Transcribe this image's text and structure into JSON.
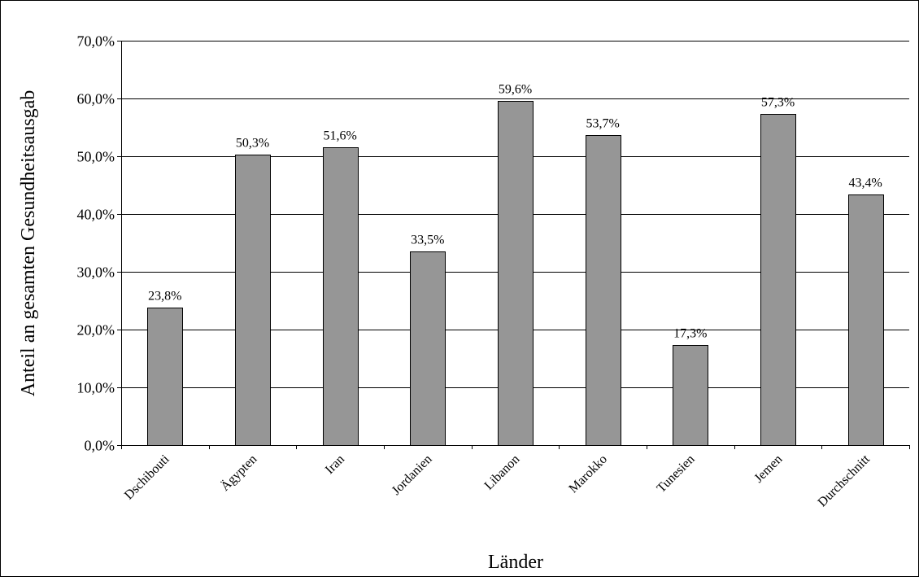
{
  "chart_data": {
    "type": "bar",
    "title": "",
    "xlabel": "Länder",
    "ylabel": "Anteil an gesamten Gesundheitsausgab",
    "categories": [
      "Dschibouti",
      "Ägypten",
      "Iran",
      "Jordanien",
      "Libanon",
      "Marokko",
      "Tunesien",
      "Jemen",
      "Durchschnitt"
    ],
    "values": [
      23.8,
      50.3,
      51.6,
      33.5,
      59.6,
      53.7,
      17.3,
      57.3,
      43.4
    ],
    "data_labels": [
      "23,8%",
      "50,3%",
      "51,6%",
      "33,5%",
      "59,6%",
      "53,7%",
      "17,3%",
      "57,3%",
      "43,4%"
    ],
    "ylim": [
      0,
      70
    ],
    "yticks": [
      0,
      10,
      20,
      30,
      40,
      50,
      60,
      70
    ],
    "ytick_labels": [
      "0,0%",
      "10,0%",
      "20,0%",
      "30,0%",
      "40,0%",
      "50,0%",
      "60,0%",
      "70,0%"
    ],
    "grid": true,
    "legend": "none",
    "bar_color": "#969696",
    "bar_edge_color": "#000000",
    "gridline_color": "#000000"
  }
}
